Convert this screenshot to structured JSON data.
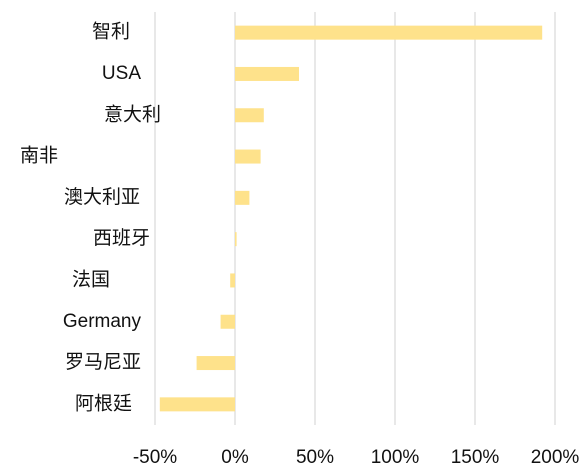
{
  "chart_data": {
    "type": "bar",
    "orientation": "horizontal",
    "categories": [
      "智利",
      "USA",
      "意大利",
      "南非",
      "澳大利亚",
      "西班牙",
      "法国",
      "Germany",
      "罗马尼亚",
      "阿根廷"
    ],
    "values": [
      192,
      40,
      18,
      16,
      9,
      1,
      -3,
      -9,
      -24,
      -47
    ],
    "color": "#fee28b",
    "xlim": [
      -50,
      200
    ],
    "xticks": [
      {
        "value": -50,
        "label": "-50%"
      },
      {
        "value": 0,
        "label": "0%"
      },
      {
        "value": 50,
        "label": "50%"
      },
      {
        "value": 100,
        "label": "100%"
      },
      {
        "value": 150,
        "label": "150%"
      },
      {
        "value": 200,
        "label": "200%"
      }
    ],
    "grid": true
  }
}
